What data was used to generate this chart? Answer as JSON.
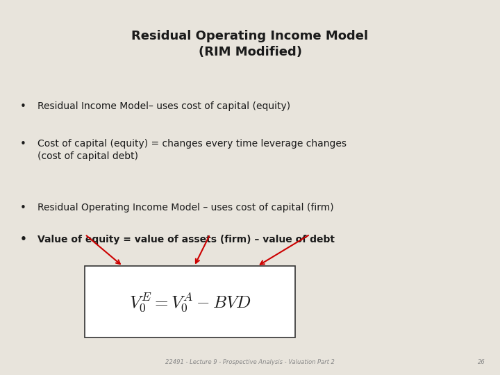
{
  "background_color": "#e8e4dc",
  "title_line1": "Residual Operating Income Model",
  "title_line2": "(RIM Modified)",
  "title_fontsize": 13,
  "bullet1": "Residual Income Model– uses cost of capital (equity)",
  "bullet2_line1": "Cost of capital (equity) = changes every time leverage changes",
  "bullet2_line2": "(cost of capital debt)",
  "bullet3": "Residual Operating Income Model – uses cost of capital (firm)",
  "bullet4": "Value of equity = value of assets (firm) – value of debt",
  "bullet_fontsize": 10,
  "formula_fontsize": 18,
  "footer_text": "22491 - Lecture 9 - Prospective Analysis - Valuation Part 2",
  "footer_page": "26",
  "footer_fontsize": 6,
  "arrow_color": "#cc0000",
  "box_color": "#ffffff",
  "box_border_color": "#333333",
  "text_color": "#1a1a1a"
}
